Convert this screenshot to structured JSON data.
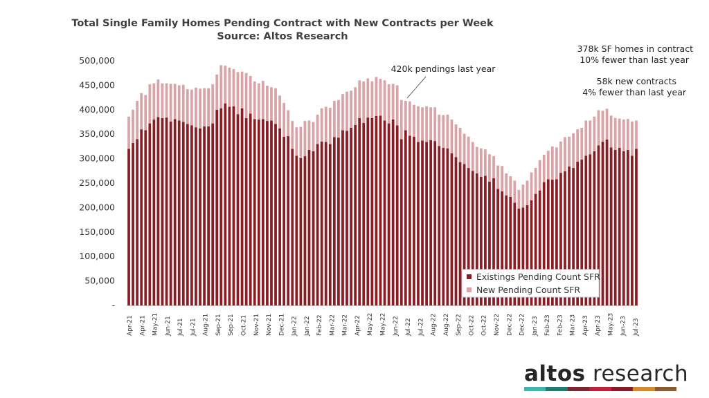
{
  "chart_data": {
    "type": "bar",
    "stacked": true,
    "title": "Total Single Family Homes Pending Contract with New Contracts per Week",
    "subtitle": "Source: Altos Research",
    "xlabel": "",
    "ylabel": "",
    "ylim": [
      0,
      500000
    ],
    "y_ticks": [
      0,
      50000,
      100000,
      150000,
      200000,
      250000,
      300000,
      350000,
      400000,
      450000,
      500000
    ],
    "y_tick_labels": [
      "-",
      "50,000",
      "100,000",
      "150,000",
      "200,000",
      "250,000",
      "300,000",
      "350,000",
      "400,000",
      "450,000",
      "500,000"
    ],
    "x_tick_labels": [
      "Apr-21",
      "Apr-21",
      "May-21",
      "Jun-21",
      "Jul-21",
      "Jul-21",
      "Aug-21",
      "Sep-21",
      "Sep-21",
      "Oct-21",
      "Nov-21",
      "Nov-21",
      "Dec-21",
      "Jan-22",
      "Jan-22",
      "Feb-22",
      "Mar-22",
      "Mar-22",
      "Apr-22",
      "May-22",
      "May-22",
      "Jun-22",
      "Jul-22",
      "Jul-22",
      "Aug-22",
      "Aug-22",
      "Sep-22",
      "Oct-22",
      "Oct-22",
      "Nov-22",
      "Dec-22",
      "Dec-22",
      "Jan-23",
      "Feb-23",
      "Feb-23",
      "Mar-23",
      "Apr-23",
      "Apr-23",
      "May-23",
      "Jun-23",
      "Jul-23"
    ],
    "series": [
      {
        "name": "Existings Pending Count SFR",
        "color": "#8a1c24",
        "values": [
          320000,
          332000,
          340000,
          360000,
          358000,
          372000,
          380000,
          385000,
          383000,
          384000,
          376000,
          381000,
          378000,
          375000,
          371000,
          368000,
          364000,
          362000,
          366000,
          366000,
          372000,
          400000,
          403000,
          413000,
          406000,
          407000,
          391000,
          403000,
          383000,
          392000,
          381000,
          380000,
          381000,
          377000,
          378000,
          371000,
          362000,
          345000,
          346000,
          320000,
          306000,
          301000,
          305000,
          318000,
          315000,
          330000,
          335000,
          334000,
          330000,
          344000,
          343000,
          358000,
          357000,
          363000,
          369000,
          383000,
          373000,
          384000,
          383000,
          387000,
          388000,
          378000,
          372000,
          380000,
          368000,
          340000,
          358000,
          347000,
          345000,
          334000,
          337000,
          334000,
          338000,
          336000,
          326000,
          322000,
          321000,
          311000,
          303000,
          293000,
          289000,
          281000,
          275000,
          270000,
          263000,
          265000,
          253000,
          260000,
          238000,
          233000,
          225000,
          222000,
          210000,
          198000,
          200000,
          205000,
          215000,
          228000,
          235000,
          252000,
          258000,
          257000,
          258000,
          271000,
          274000,
          284000,
          281000,
          294000,
          298000,
          306000,
          309000,
          315000,
          327000,
          335000,
          339000,
          323000,
          318000,
          322000,
          315000,
          318000,
          306000,
          320000
        ],
        "pixel_note": "",
        "stack": "bottom"
      },
      {
        "name": "New Pending Count SFR",
        "color": "#d9a3a7",
        "values": [
          66000,
          68000,
          78000,
          74000,
          72000,
          80000,
          74000,
          77000,
          71000,
          70000,
          77000,
          72000,
          72000,
          76000,
          71000,
          73000,
          81000,
          81000,
          78000,
          78000,
          80000,
          72000,
          88000,
          77000,
          80000,
          76000,
          86000,
          75000,
          92000,
          77000,
          77000,
          74000,
          78000,
          72000,
          68000,
          73000,
          67000,
          69000,
          53000,
          57000,
          58000,
          64000,
          72000,
          60000,
          60000,
          60000,
          68000,
          72000,
          74000,
          74000,
          77000,
          74000,
          80000,
          76000,
          77000,
          77000,
          85000,
          80000,
          75000,
          80000,
          75000,
          82000,
          80000,
          73000,
          82000,
          80000,
          60000,
          70000,
          65000,
          73000,
          68000,
          73000,
          67000,
          69000,
          64000,
          67000,
          69000,
          69000,
          67000,
          70000,
          62000,
          64000,
          59000,
          54000,
          58000,
          54000,
          56000,
          45000,
          48000,
          52000,
          45000,
          42000,
          45000,
          38000,
          47000,
          50000,
          57000,
          53000,
          62000,
          56000,
          58000,
          68000,
          65000,
          64000,
          70000,
          61000,
          71000,
          66000,
          65000,
          72000,
          69000,
          71000,
          72000,
          63000,
          63000,
          65000,
          65000,
          60000,
          65000,
          63000,
          70000,
          58000
        ],
        "stack": "top"
      }
    ],
    "legend": {
      "position": "bottom-right",
      "entries": [
        "Existings Pending Count SFR",
        "New Pending Count SFR"
      ]
    },
    "annotations": [
      {
        "text": "420k pendings last year"
      },
      {
        "text": "378k SF homes in contract"
      },
      {
        "text": "10% fewer than last year"
      },
      {
        "text": "58k new contracts"
      },
      {
        "text": "4% fewer than last year"
      }
    ],
    "grid": false
  },
  "logo": {
    "part1": "altos",
    "part2": " research",
    "bar_colors": [
      "#3bb7b0",
      "#1e7d6f",
      "#7f2630",
      "#c21f3a",
      "#8a1b2b",
      "#d58a2a",
      "#8a5a2b"
    ]
  }
}
